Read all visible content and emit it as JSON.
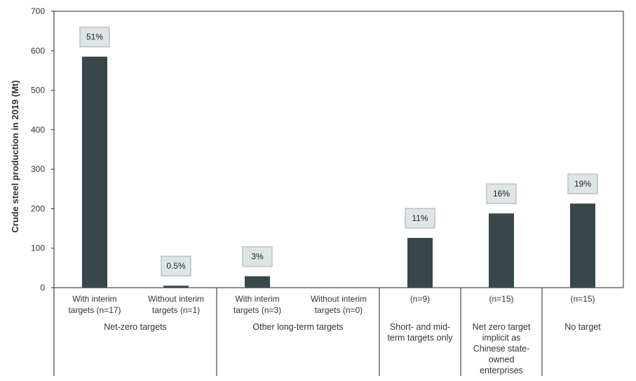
{
  "chart_data": {
    "type": "bar",
    "ylabel": "Crude steel production in 2019 (Mt)",
    "ylim": [
      0,
      700
    ],
    "yticks": [
      "0",
      "100",
      "200",
      "300",
      "400",
      "500",
      "600",
      "700"
    ],
    "bar_color": "#37474a",
    "label_box_fill": "#dfe5e6",
    "label_box_stroke": "#b9c4c6",
    "categories": [
      {
        "lines": [
          "With interim",
          "targets (n=17)"
        ],
        "value": 585,
        "label": "51%"
      },
      {
        "lines": [
          "Without interim",
          "targets (n=1)"
        ],
        "value": 5,
        "label": "0.5%"
      },
      {
        "lines": [
          "With interim",
          "targets (n=3)"
        ],
        "value": 29,
        "label": "3%"
      },
      {
        "lines": [
          "Without interim",
          "targets (n=0)"
        ],
        "value": 0,
        "label": null
      },
      {
        "lines": [
          "(n=9)"
        ],
        "value": 126,
        "label": "11%"
      },
      {
        "lines": [
          "(n=15)"
        ],
        "value": 188,
        "label": "16%"
      },
      {
        "lines": [
          "(n=15)"
        ],
        "value": 213,
        "label": "19%"
      }
    ],
    "groups": [
      {
        "span": [
          0,
          1
        ],
        "lines": [
          "Net-zero targets"
        ]
      },
      {
        "span": [
          2,
          3
        ],
        "lines": [
          "Other long-term targets"
        ]
      },
      {
        "span": [
          4,
          4
        ],
        "lines": [
          "Short- and mid-",
          "term targets only"
        ]
      },
      {
        "span": [
          5,
          5
        ],
        "lines": [
          "Net zero target",
          "implicit as",
          "Chinese state-",
          "owned",
          "enterprises"
        ]
      },
      {
        "span": [
          6,
          6
        ],
        "lines": [
          "No target"
        ]
      }
    ]
  }
}
